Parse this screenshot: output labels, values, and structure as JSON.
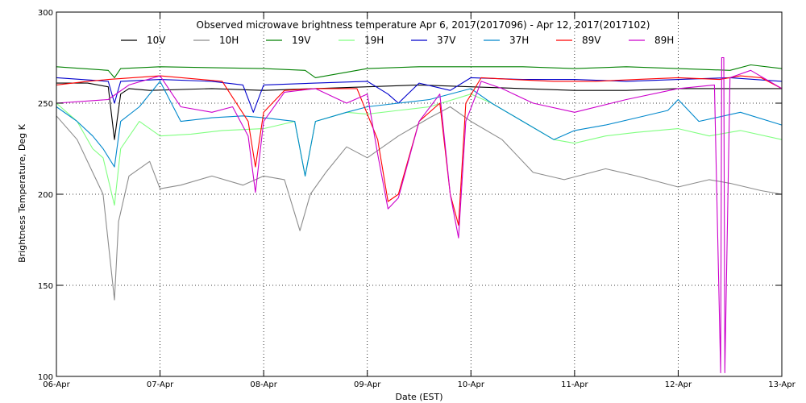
{
  "chart_data": {
    "type": "line",
    "title": "Observed microwave brightness temperature Apr  6, 2017(2017096) - Apr 12, 2017(2017102)",
    "xlabel": "Date (EST)",
    "ylabel": "Brightness Temperature, Deg K",
    "xlim": [
      0,
      7
    ],
    "ylim": [
      100,
      300
    ],
    "yticks": [
      100,
      150,
      200,
      250,
      300
    ],
    "xtick_values": [
      0,
      1,
      2,
      3,
      4,
      5,
      6,
      7
    ],
    "xtick_labels": [
      "06-Apr",
      "07-Apr",
      "08-Apr",
      "09-Apr",
      "10-Apr",
      "11-Apr",
      "12-Apr",
      "13-Apr"
    ],
    "grid": "dotted",
    "legend_position": "top",
    "x_unit": "days since 06-Apr 00:00 EST",
    "series": [
      {
        "name": "10V",
        "color": "#000000",
        "x": [
          0,
          0.3,
          0.5,
          0.56,
          0.62,
          0.7,
          0.9,
          1.5,
          2.0,
          2.5,
          3.0,
          3.5,
          4.0,
          4.5,
          5.0,
          5.5,
          6.0,
          6.5,
          7.0
        ],
        "y": [
          261,
          261,
          259,
          230,
          255,
          258,
          257,
          258,
          257,
          258,
          259,
          260,
          259,
          258,
          257,
          257,
          258,
          258,
          258
        ]
      },
      {
        "name": "10H",
        "color": "#8c8c8c",
        "x": [
          0,
          0.2,
          0.35,
          0.45,
          0.56,
          0.6,
          0.7,
          0.9,
          1.0,
          1.2,
          1.5,
          1.8,
          2.0,
          2.2,
          2.35,
          2.45,
          2.6,
          2.8,
          3.0,
          3.3,
          3.6,
          3.8,
          4.0,
          4.3,
          4.6,
          4.9,
          5.3,
          5.6,
          6.0,
          6.3,
          6.5,
          6.8,
          7.0
        ],
        "y": [
          243,
          230,
          212,
          200,
          142,
          185,
          210,
          218,
          203,
          205,
          210,
          205,
          210,
          208,
          180,
          200,
          212,
          226,
          220,
          232,
          242,
          248,
          240,
          230,
          212,
          208,
          214,
          210,
          204,
          208,
          206,
          202,
          200
        ]
      },
      {
        "name": "19V",
        "color": "#008000",
        "x": [
          0,
          0.5,
          0.56,
          0.62,
          1.0,
          2.0,
          2.4,
          2.5,
          3.0,
          3.5,
          4.0,
          4.5,
          5.0,
          5.5,
          6.0,
          6.5,
          6.7,
          7.0
        ],
        "y": [
          270,
          268,
          264,
          269,
          270,
          269,
          268,
          264,
          269,
          270,
          270,
          270,
          269,
          270,
          269,
          268,
          271,
          269
        ]
      },
      {
        "name": "19H",
        "color": "#80ff80",
        "x": [
          0,
          0.2,
          0.35,
          0.45,
          0.56,
          0.62,
          0.8,
          1.0,
          1.3,
          1.6,
          2.0,
          2.3,
          2.4,
          2.5,
          2.8,
          3.0,
          3.3,
          3.6,
          4.0,
          4.2,
          4.5,
          4.8,
          5.0,
          5.3,
          5.6,
          6.0,
          6.3,
          6.6,
          7.0
        ],
        "y": [
          250,
          240,
          225,
          220,
          194,
          225,
          240,
          232,
          233,
          235,
          236,
          240,
          210,
          240,
          245,
          244,
          246,
          248,
          255,
          250,
          240,
          230,
          228,
          232,
          234,
          236,
          232,
          235,
          230
        ]
      },
      {
        "name": "37V",
        "color": "#0000cc",
        "x": [
          0,
          0.5,
          0.56,
          0.62,
          1.0,
          1.5,
          1.8,
          1.9,
          2.0,
          2.5,
          3.0,
          3.2,
          3.3,
          3.5,
          3.8,
          4.0,
          4.5,
          5.0,
          5.5,
          6.0,
          6.5,
          7.0
        ],
        "y": [
          264,
          262,
          250,
          262,
          263,
          262,
          260,
          245,
          260,
          261,
          262,
          255,
          250,
          261,
          257,
          264,
          263,
          263,
          262,
          263,
          264,
          262
        ]
      },
      {
        "name": "37H",
        "color": "#0088cc",
        "x": [
          0,
          0.2,
          0.35,
          0.45,
          0.56,
          0.62,
          0.8,
          1.0,
          1.2,
          1.5,
          1.8,
          2.0,
          2.3,
          2.4,
          2.5,
          2.8,
          3.0,
          3.3,
          3.6,
          4.0,
          4.2,
          4.5,
          4.8,
          5.0,
          5.3,
          5.6,
          5.9,
          6.0,
          6.2,
          6.6,
          7.0
        ],
        "y": [
          248,
          240,
          232,
          225,
          215,
          240,
          248,
          262,
          240,
          242,
          243,
          242,
          240,
          210,
          240,
          245,
          248,
          250,
          252,
          258,
          250,
          240,
          230,
          235,
          238,
          242,
          246,
          252,
          240,
          245,
          238
        ]
      },
      {
        "name": "89V",
        "color": "#ff0000",
        "x": [
          0,
          0.3,
          0.5,
          1.0,
          1.6,
          1.85,
          1.92,
          2.0,
          2.2,
          2.5,
          2.9,
          3.1,
          3.2,
          3.3,
          3.5,
          3.7,
          3.8,
          3.88,
          3.95,
          4.1,
          4.4,
          4.8,
          5.2,
          5.6,
          6.0,
          6.4,
          6.6,
          6.8,
          7.0
        ],
        "y": [
          260,
          262,
          263,
          265,
          262,
          240,
          215,
          245,
          257,
          258,
          258,
          230,
          196,
          200,
          240,
          250,
          200,
          183,
          250,
          264,
          263,
          262,
          262,
          263,
          264,
          263,
          265,
          264,
          258
        ]
      },
      {
        "name": "89H",
        "color": "#cc00cc",
        "x": [
          0,
          0.5,
          0.7,
          1.0,
          1.2,
          1.5,
          1.7,
          1.85,
          1.92,
          2.0,
          2.2,
          2.5,
          2.8,
          3.0,
          3.1,
          3.2,
          3.3,
          3.5,
          3.7,
          3.8,
          3.88,
          3.95,
          4.1,
          4.3,
          4.6,
          5.0,
          5.5,
          6.0,
          6.35,
          6.41,
          6.42,
          6.44,
          6.45,
          6.5,
          6.7,
          7.0
        ],
        "y": [
          250,
          252,
          260,
          265,
          248,
          245,
          248,
          232,
          201,
          240,
          256,
          258,
          250,
          255,
          222,
          192,
          198,
          240,
          255,
          200,
          176,
          240,
          262,
          258,
          250,
          245,
          252,
          258,
          260,
          102,
          275,
          275,
          102,
          264,
          268,
          258
        ]
      }
    ]
  }
}
